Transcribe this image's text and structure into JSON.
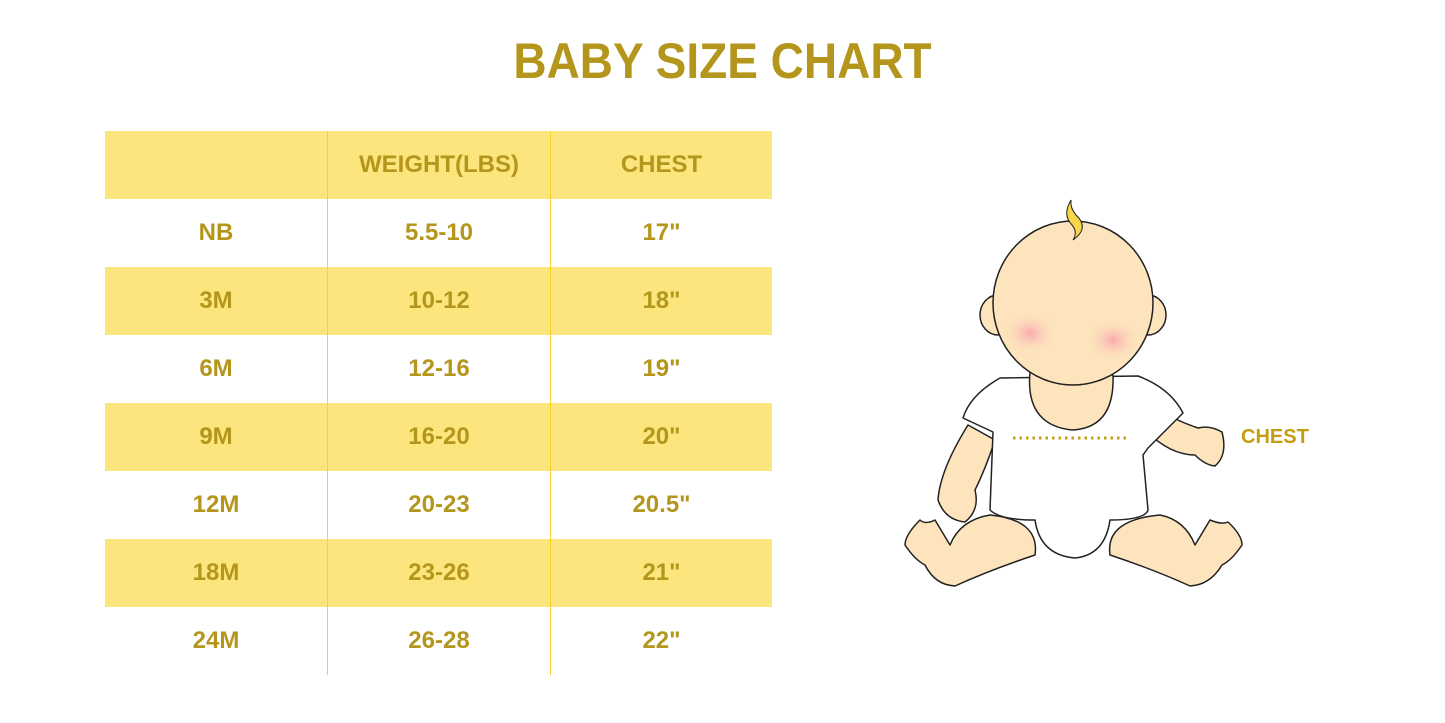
{
  "title": "BABY SIZE CHART",
  "table": {
    "headers": [
      "",
      "WEIGHT(LBS)",
      "CHEST"
    ],
    "rows": [
      [
        "NB",
        "5.5-10",
        "17\""
      ],
      [
        "3M",
        "10-12",
        "18\""
      ],
      [
        "6M",
        "12-16",
        "19\""
      ],
      [
        "9M",
        "16-20",
        "20\""
      ],
      [
        "12M",
        "20-23",
        "20.5\""
      ],
      [
        "18M",
        "23-26",
        "21\""
      ],
      [
        "24M",
        "26-28",
        "22\""
      ]
    ]
  },
  "illustration": {
    "chest_label": "CHEST"
  },
  "colors": {
    "text": "#b5961c",
    "stripe": "#fce57c",
    "divider": "#f9d02c",
    "skin": "#fde4bd"
  }
}
